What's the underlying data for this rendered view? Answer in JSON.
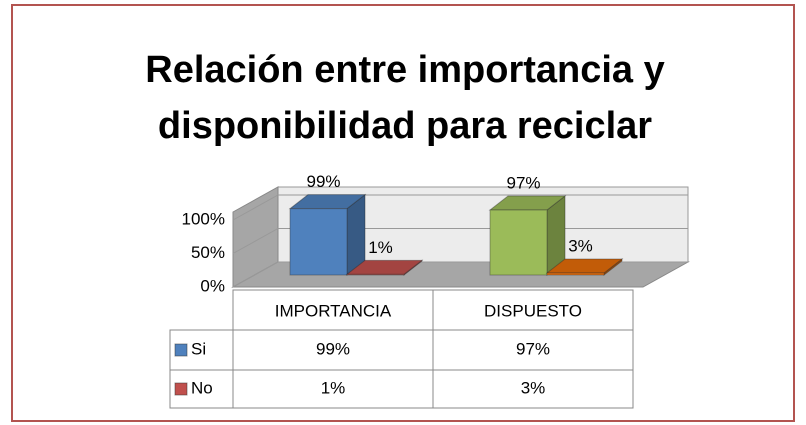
{
  "chart_data": {
    "type": "bar3d",
    "title": "Relación entre importancia y disponibilidad para reciclar",
    "categories": [
      "IMPORTANCIA",
      "DISPUESTO"
    ],
    "series": [
      {
        "name": "Si",
        "color": "#4f81bd",
        "colors": [
          "#4f81bd",
          "#9bbb59"
        ],
        "values": [
          99,
          97
        ],
        "value_labels": [
          "99%",
          "97%"
        ]
      },
      {
        "name": "No",
        "color": "#c0504d",
        "colors": [
          "#c0504d",
          "#e46c0a"
        ],
        "values": [
          1,
          3
        ],
        "value_labels": [
          "1%",
          "3%"
        ]
      }
    ],
    "ylim": [
      0,
      100
    ],
    "yticks": [
      {
        "value": 0,
        "label": "0%"
      },
      {
        "value": 50,
        "label": "50%"
      },
      {
        "value": 100,
        "label": "100%"
      }
    ],
    "grid": true,
    "legend": "table"
  }
}
